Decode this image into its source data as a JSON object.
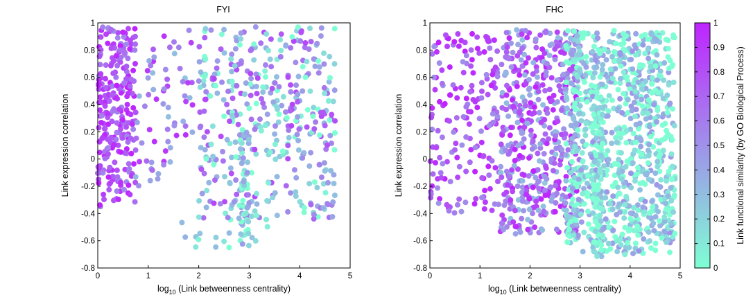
{
  "colors": {
    "cmap_low": "#7fffd4",
    "cmap_high": "#bf24ff",
    "axis": "#000000",
    "background": "#ffffff"
  },
  "colorbar": {
    "label": "Link functional similarity (by GO Biological Process)",
    "range": [
      0,
      1
    ],
    "ticks": [
      "0",
      "0.1",
      "0.2",
      "0.3",
      "0.4",
      "0.5",
      "0.6",
      "0.7",
      "0.8",
      "0.9",
      "1"
    ]
  },
  "chart_data": [
    {
      "type": "scatter",
      "title": "FYI",
      "xlabel_main": "log",
      "xlabel_sub": "10",
      "xlabel_rest": " (Link betweenness centrality)",
      "ylabel": "Link expression correlation",
      "xlim": [
        0,
        5
      ],
      "ylim": [
        -0.8,
        1
      ],
      "xticks": [
        "0",
        "1",
        "2",
        "3",
        "4",
        "5"
      ],
      "yticks": [
        "-0.8",
        "-0.6",
        "-0.4",
        "-0.2",
        "0",
        "0.2",
        "0.4",
        "0.6",
        "0.8",
        "1"
      ],
      "seed": 11,
      "clusters": [
        {
          "n": 260,
          "x": [
            0.0,
            0.75
          ],
          "y": [
            -0.35,
            0.97
          ],
          "cmean": 0.78,
          "cspread": 0.25
        },
        {
          "n": 70,
          "x": [
            0.7,
            1.9
          ],
          "y": [
            -0.2,
            0.95
          ],
          "cmean": 0.6,
          "cspread": 0.35
        },
        {
          "n": 420,
          "x": [
            2.0,
            4.7
          ],
          "y": [
            -0.45,
            0.97
          ],
          "cmean": 0.4,
          "cspread": 0.45
        },
        {
          "n": 50,
          "x": [
            2.8,
            3.0
          ],
          "y": [
            -0.65,
            0.2
          ],
          "cmean": 0.2,
          "cspread": 0.3
        },
        {
          "n": 20,
          "x": [
            1.6,
            3.4
          ],
          "y": [
            -0.66,
            -0.4
          ],
          "cmean": 0.15,
          "cspread": 0.2
        }
      ]
    },
    {
      "type": "scatter",
      "title": "FHC",
      "xlabel_main": "log",
      "xlabel_sub": "10",
      "xlabel_rest": " (Link betweenness centrality)",
      "ylabel": "Link expression correlation",
      "xlim": [
        0,
        5
      ],
      "ylim": [
        -0.8,
        1
      ],
      "xticks": [
        "0",
        "1",
        "2",
        "3",
        "4",
        "5"
      ],
      "yticks": [
        "-0.8",
        "-0.6",
        "-0.4",
        "-0.2",
        "0",
        "0.2",
        "0.4",
        "0.6",
        "0.8",
        "1"
      ],
      "seed": 29,
      "clusters": [
        {
          "n": 180,
          "x": [
            0.0,
            1.4
          ],
          "y": [
            -0.4,
            0.95
          ],
          "cmean": 0.78,
          "cspread": 0.3
        },
        {
          "n": 520,
          "x": [
            1.4,
            3.0
          ],
          "y": [
            -0.55,
            0.95
          ],
          "cmean": 0.65,
          "cspread": 0.4
        },
        {
          "n": 950,
          "x": [
            2.7,
            4.9
          ],
          "y": [
            -0.7,
            0.95
          ],
          "cmean": 0.15,
          "cspread": 0.35
        },
        {
          "n": 90,
          "x": [
            3.25,
            3.45
          ],
          "y": [
            -0.72,
            0.5
          ],
          "cmean": 0.1,
          "cspread": 0.2
        }
      ]
    }
  ]
}
